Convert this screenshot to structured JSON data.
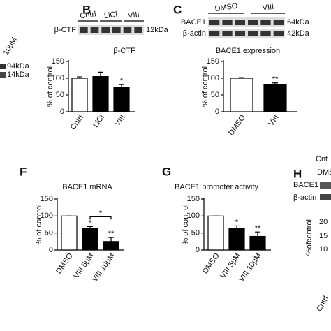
{
  "left_fragment": {
    "label": "10μM",
    "kda": [
      "94kDa",
      "14kDa"
    ]
  },
  "chart_data": [
    {
      "type": "bar",
      "panel": "B",
      "title": "β-CTF",
      "y_label": "% of control",
      "blot": {
        "lanes": [
          "Cntrl",
          "LiCl",
          "VIII"
        ],
        "rows": [
          {
            "label": "β-CTF",
            "kda": "12kDa"
          }
        ]
      },
      "categories": [
        "Cntrl",
        "LiCl",
        "VIII"
      ],
      "values": [
        100,
        105,
        72
      ],
      "errors": [
        4,
        13,
        9
      ],
      "colors": [
        "#ffffff",
        "#000000",
        "#000000"
      ],
      "significance": [
        null,
        null,
        "*"
      ],
      "ylim": [
        0,
        150
      ],
      "yticks": [
        0,
        50,
        100,
        150
      ]
    },
    {
      "type": "bar",
      "panel": "C",
      "title": "BACE1 expression",
      "y_label": "% of control",
      "blot": {
        "lanes": [
          "DMSO",
          "VIII"
        ],
        "rows": [
          {
            "label": "BACE1",
            "kda": "64kDa"
          },
          {
            "label": "β-actin",
            "kda": "42kDa"
          }
        ]
      },
      "categories": [
        "DMSO",
        "VIII"
      ],
      "values": [
        100,
        80
      ],
      "errors": [
        2,
        6
      ],
      "colors": [
        "#ffffff",
        "#000000"
      ],
      "significance": [
        null,
        "**"
      ],
      "ylim": [
        0,
        150
      ],
      "yticks": [
        0,
        50,
        100,
        150
      ]
    },
    {
      "type": "bar",
      "panel": "F",
      "title": "BACE1 mRNA",
      "y_label": "% of control",
      "categories": [
        "DMSO",
        "VIII 5μM",
        "VIII 10μM"
      ],
      "values": [
        100,
        63,
        25
      ],
      "errors": [
        0,
        6,
        12
      ],
      "colors": [
        "#ffffff",
        "#000000",
        "#000000"
      ],
      "significance": [
        null,
        "*",
        "**"
      ],
      "comparison": "*",
      "ylim": [
        0,
        150
      ],
      "yticks": [
        0,
        50,
        100,
        150
      ]
    },
    {
      "type": "bar",
      "panel": "G",
      "title": "BACE1 promoter activity",
      "y_label": "% of control",
      "categories": [
        "DMSO",
        "VIII 5μM",
        "VIII 10μM"
      ],
      "values": [
        100,
        63,
        40
      ],
      "errors": [
        0,
        8,
        13
      ],
      "colors": [
        "#ffffff",
        "#000000",
        "#000000"
      ],
      "significance": [
        null,
        "*",
        "**"
      ],
      "ylim": [
        0,
        150
      ],
      "yticks": [
        0,
        50,
        100,
        150
      ]
    }
  ],
  "panel_h": {
    "letter": "H",
    "lanes": [
      "Cnt",
      "DMS"
    ],
    "rows": [
      "BACE1",
      "β-actin"
    ],
    "ticks": [
      "20",
      "15",
      "10"
    ],
    "y_label": "%ofcontrol",
    "category": "Cntrl"
  }
}
